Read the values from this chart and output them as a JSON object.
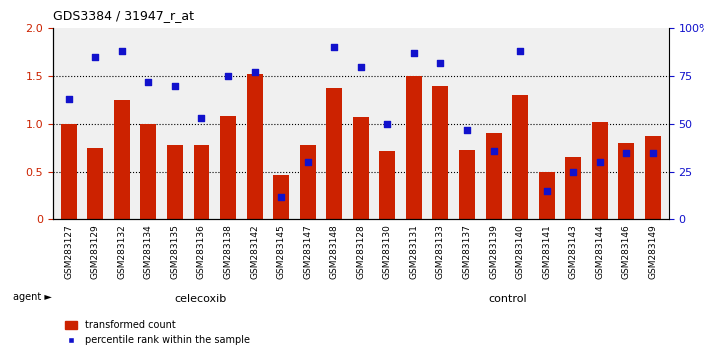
{
  "title": "GDS3384 / 31947_r_at",
  "categories": [
    "GSM283127",
    "GSM283129",
    "GSM283132",
    "GSM283134",
    "GSM283135",
    "GSM283136",
    "GSM283138",
    "GSM283142",
    "GSM283145",
    "GSM283147",
    "GSM283148",
    "GSM283128",
    "GSM283130",
    "GSM283131",
    "GSM283133",
    "GSM283137",
    "GSM283139",
    "GSM283140",
    "GSM283141",
    "GSM283143",
    "GSM283144",
    "GSM283146",
    "GSM283149"
  ],
  "bar_values": [
    1.0,
    0.75,
    1.25,
    1.0,
    0.78,
    0.78,
    1.08,
    1.52,
    0.47,
    0.78,
    1.38,
    1.07,
    0.72,
    1.5,
    1.4,
    0.73,
    0.9,
    1.3,
    0.5,
    0.65,
    1.02,
    0.8,
    0.87
  ],
  "scatter_pct": [
    63,
    85,
    88,
    72,
    70,
    53,
    75,
    77,
    12,
    30,
    90,
    80,
    50,
    87,
    82,
    47,
    36,
    88,
    15,
    25,
    30,
    35,
    35
  ],
  "group1_label": "celecoxib",
  "group2_label": "control",
  "group1_count": 11,
  "group2_count": 12,
  "bar_color": "#CC2200",
  "scatter_color": "#1111CC",
  "group1_bg": "#BBFFBB",
  "group2_bg": "#55DD55",
  "yticks_left": [
    0,
    0.5,
    1.0,
    1.5,
    2.0
  ],
  "yticks_right_vals": [
    0,
    25,
    50,
    75,
    100
  ],
  "yticks_right_labels": [
    "0",
    "25",
    "50",
    "75",
    "100%"
  ],
  "ylim_left": [
    0,
    2.0
  ],
  "ylim_right": [
    0,
    100
  ],
  "hlines": [
    0.5,
    1.0,
    1.5
  ],
  "legend_bar_label": "transformed count",
  "legend_scatter_label": "percentile rank within the sample",
  "plot_bg": "#F0F0F0",
  "fig_bg": "white"
}
